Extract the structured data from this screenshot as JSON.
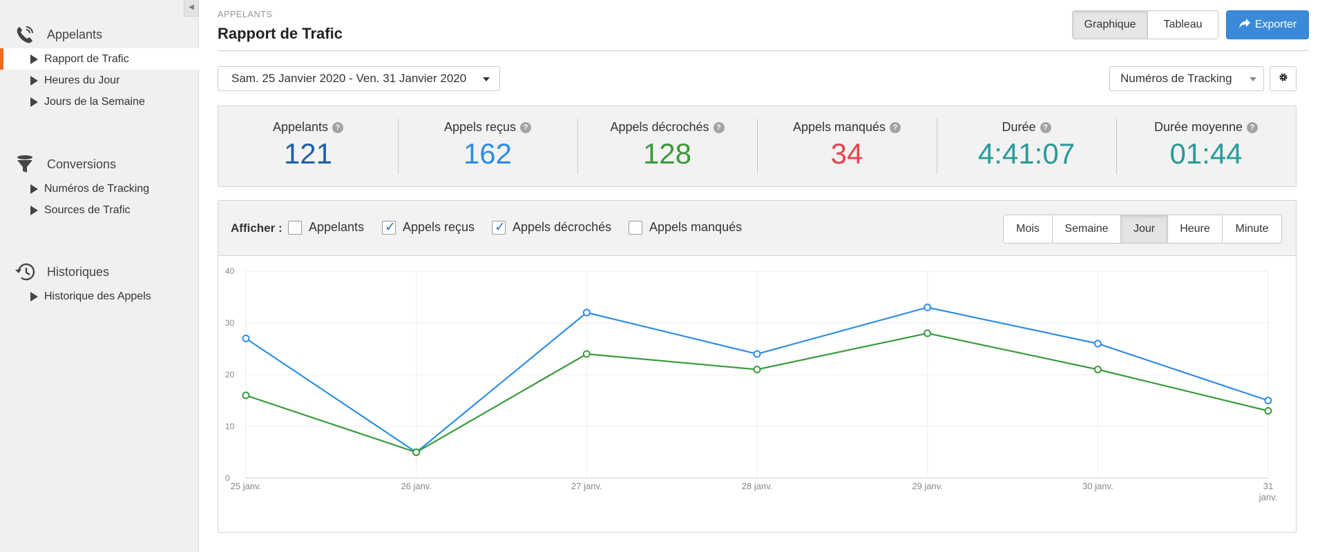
{
  "sidebar": {
    "sections": [
      {
        "title": "Appelants",
        "icon": "phone-icon",
        "items": [
          "Rapport de Trafic",
          "Heures du Jour",
          "Jours de la Semaine"
        ]
      },
      {
        "title": "Conversions",
        "icon": "funnel-icon",
        "items": [
          "Numéros de Tracking",
          "Sources de Trafic"
        ]
      },
      {
        "title": "Historiques",
        "icon": "history-icon",
        "items": [
          "Historique des Appels"
        ]
      }
    ],
    "active_item": "Rapport de Trafic"
  },
  "header": {
    "breadcrumb": "APPELANTS",
    "title": "Rapport de Trafic",
    "view_graph": "Graphique",
    "view_table": "Tableau",
    "export_label": "Exporter"
  },
  "filters": {
    "date_range": "Sam. 25 Janvier 2020 - Ven. 31 Janvier 2020",
    "tracking_select": "Numéros de Tracking"
  },
  "stats": [
    {
      "label": "Appelants",
      "value": "121",
      "color": "#1f5fa8"
    },
    {
      "label": "Appels reçus",
      "value": "162",
      "color": "#2d8de3"
    },
    {
      "label": "Appels décrochés",
      "value": "128",
      "color": "#3a9a3a"
    },
    {
      "label": "Appels manqués",
      "value": "34",
      "color": "#e8434b"
    },
    {
      "label": "Durée",
      "value": "4:41:07",
      "color": "#2a9a9a"
    },
    {
      "label": "Durée moyenne",
      "value": "01:44",
      "color": "#2a9a9a"
    }
  ],
  "chart_toolbar": {
    "show_label": "Afficher :",
    "series_options": [
      {
        "label": "Appelants",
        "checked": false
      },
      {
        "label": "Appels reçus",
        "checked": true
      },
      {
        "label": "Appels décrochés",
        "checked": true
      },
      {
        "label": "Appels manqués",
        "checked": false
      }
    ],
    "granularity": [
      "Mois",
      "Semaine",
      "Jour",
      "Heure",
      "Minute"
    ],
    "active_granularity": "Jour"
  },
  "chart_data": {
    "type": "line",
    "categories": [
      "25 janv.",
      "26 janv.",
      "27 janv.",
      "28 janv.",
      "29 janv.",
      "30 janv.",
      "31 janv."
    ],
    "series": [
      {
        "name": "Appels reçus",
        "color": "#2d8de3",
        "values": [
          27,
          5,
          32,
          24,
          33,
          26,
          15
        ]
      },
      {
        "name": "Appels décrochés",
        "color": "#3a9a3a",
        "values": [
          16,
          5,
          24,
          21,
          28,
          21,
          13
        ]
      }
    ],
    "ylim": [
      0,
      40
    ],
    "yticks": [
      0,
      10,
      20,
      30,
      40
    ],
    "grid": true,
    "xlabel": "",
    "ylabel": "",
    "title": ""
  }
}
